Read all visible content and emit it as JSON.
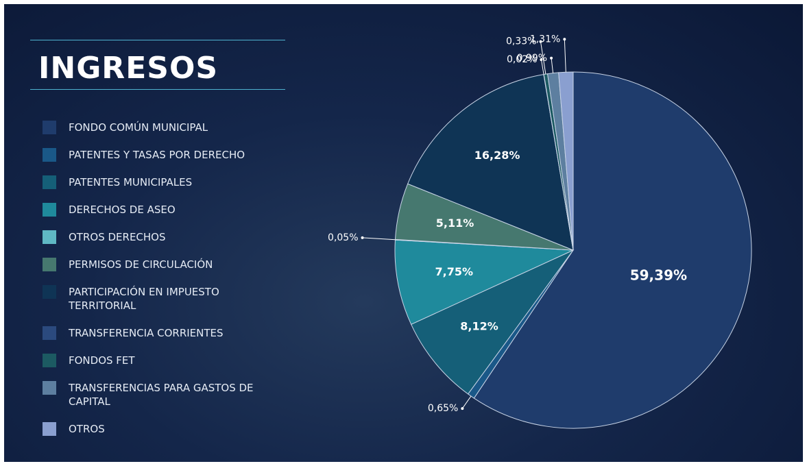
{
  "chart_data": {
    "type": "pie",
    "title": "INGRESOS",
    "categories": [
      "FONDO COMÚN MUNICIPAL",
      "PATENTES Y TASAS POR DERECHO",
      "PATENTES MUNICIPALES",
      "DERECHOS DE ASEO",
      "OTROS DERECHOS",
      "PERMISOS DE CIRCULACIÓN",
      "PARTICIPACIÓN EN IMPUESTO TERRITORIAL",
      "TRANSFERENCIA CORRIENTES",
      "FONDOS FET",
      "TRANSFERENCIAS PARA GASTOS DE CAPITAL",
      "OTROS"
    ],
    "values": [
      59.39,
      0.65,
      8.12,
      7.75,
      0.05,
      5.11,
      16.28,
      0.02,
      0.33,
      0.99,
      1.31
    ],
    "value_labels": [
      "59,39%",
      "0,65%",
      "8,12%",
      "7,75%",
      "0,05%",
      "5,11%",
      "16,28%",
      "0,02%",
      "0,33%",
      "0,99%",
      "1,31%"
    ],
    "colors": [
      "#1f3c6c",
      "#1a5888",
      "#155f78",
      "#1f8a9c",
      "#5fb8c4",
      "#46786f",
      "#0f3455",
      "#2b4a7e",
      "#1c5a62",
      "#5d7fa0",
      "#8a9fd0"
    ]
  }
}
